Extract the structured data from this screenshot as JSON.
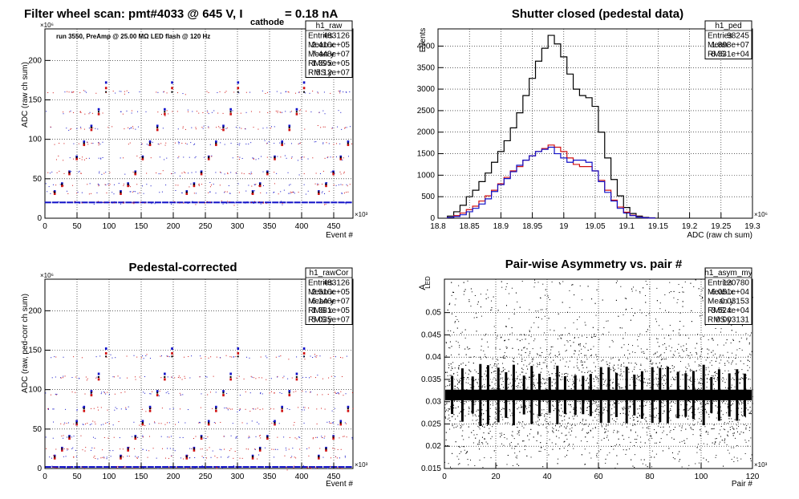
{
  "chart_data": [
    {
      "type": "scatter",
      "title": "Filter wheel scan: pmt#4033 @   645 V, I",
      "title_sub": "cathode",
      "title_tail": " = 0.18 nA",
      "annotation": "run 3550, PreAmp @ 25.00 MΩ LED flash @  120 Hz",
      "xlabel": "Event #",
      "ylabel": "ADC (raw ch sum)",
      "x_multiplier": "×10³",
      "y_multiplier": "×10⁶",
      "xlim": [
        0,
        480
      ],
      "ylim": [
        0,
        240
      ],
      "x_ticks": [
        "0",
        "50",
        "100",
        "150",
        "200",
        "250",
        "300",
        "350",
        "400",
        "450"
      ],
      "y_ticks": [
        "0",
        "50",
        "100",
        "150",
        "200"
      ],
      "grid": true,
      "stats_box": {
        "name": "h1_raw",
        "rows": [
          [
            "Entries",
            "483126"
          ],
          [
            "Mean x",
            "2.416e+05"
          ],
          [
            "Mean y",
            "7.448e+07"
          ],
          [
            "RMS x",
            "1.395e+05"
          ],
          [
            "RMS y",
            "5.12e+07"
          ]
        ]
      },
      "levels": [
        {
          "y": 20,
          "blue": 20,
          "red": 20
        },
        {
          "y": 33,
          "blue": 34,
          "red": 31
        },
        {
          "y": 43,
          "blue": 44,
          "red": 41
        },
        {
          "y": 58,
          "blue": 59,
          "red": 56
        },
        {
          "y": 77,
          "blue": 78,
          "red": 75
        },
        {
          "y": 95,
          "blue": 97,
          "red": 93
        },
        {
          "y": 115,
          "blue": 117,
          "red": 112
        },
        {
          "y": 135,
          "blue": 138,
          "red": 132
        },
        {
          "y": 160,
          "blue": 172,
          "red": 165
        }
      ]
    },
    {
      "type": "histogram",
      "title": "Shutter closed (pedestal data)",
      "xlabel": "ADC (raw ch sum)",
      "ylabel": "Events",
      "x_multiplier": "×10⁶",
      "xlim": [
        18.8,
        19.3
      ],
      "ylim": [
        0,
        4400
      ],
      "x_ticks": [
        "18.8",
        "18.85",
        "18.9",
        "18.95",
        "19",
        "19.05",
        "19.1",
        "19.15",
        "19.2",
        "19.25",
        "19.3"
      ],
      "y_ticks": [
        "0",
        "500",
        "1000",
        "1500",
        "2000",
        "2500",
        "3000",
        "3500",
        "4000"
      ],
      "grid": true,
      "stats_box": {
        "name": "h1_ped",
        "rows": [
          [
            "Entries",
            "98245"
          ],
          [
            "Mean",
            "1.898e+07"
          ],
          [
            "RMS",
            "6.331e+04"
          ]
        ]
      },
      "bin_width": 0.01,
      "series": [
        {
          "name": "total",
          "color": "#000000",
          "x": [
            18.82,
            18.83,
            18.84,
            18.85,
            18.86,
            18.87,
            18.88,
            18.89,
            18.9,
            18.91,
            18.92,
            18.93,
            18.94,
            18.95,
            18.96,
            18.97,
            18.98,
            18.99,
            19.0,
            19.01,
            19.02,
            19.03,
            19.04,
            19.05,
            19.06,
            19.07,
            19.08,
            19.09,
            19.1,
            19.11,
            19.12,
            19.13,
            19.14
          ],
          "values": [
            50,
            150,
            300,
            500,
            650,
            850,
            1050,
            1300,
            1550,
            1800,
            2100,
            2450,
            2850,
            3250,
            3650,
            3950,
            4250,
            4050,
            3750,
            3350,
            3000,
            2850,
            2800,
            2600,
            2000,
            1400,
            900,
            520,
            250,
            110,
            50,
            20,
            10
          ]
        },
        {
          "name": "red",
          "color": "#d01010",
          "x": [
            18.82,
            18.83,
            18.84,
            18.85,
            18.86,
            18.87,
            18.88,
            18.89,
            18.9,
            18.91,
            18.92,
            18.93,
            18.94,
            18.95,
            18.96,
            18.97,
            18.98,
            18.99,
            19.0,
            19.01,
            19.02,
            19.03,
            19.04,
            19.05,
            19.06,
            19.07,
            19.08,
            19.09,
            19.1,
            19.11,
            19.12,
            19.13,
            19.14
          ],
          "values": [
            20,
            60,
            120,
            200,
            280,
            400,
            520,
            650,
            800,
            950,
            1100,
            1200,
            1350,
            1450,
            1550,
            1620,
            1700,
            1650,
            1550,
            1400,
            1250,
            1200,
            1200,
            1100,
            880,
            650,
            420,
            260,
            140,
            70,
            30,
            10,
            5
          ]
        },
        {
          "name": "blue",
          "color": "#1010c8",
          "x": [
            18.82,
            18.83,
            18.84,
            18.85,
            18.86,
            18.87,
            18.88,
            18.89,
            18.9,
            18.91,
            18.92,
            18.93,
            18.94,
            18.95,
            18.96,
            18.97,
            18.98,
            18.99,
            19.0,
            19.01,
            19.02,
            19.03,
            19.04,
            19.05,
            19.06,
            19.07,
            19.08,
            19.09,
            19.1,
            19.11,
            19.12,
            19.13,
            19.14
          ],
          "values": [
            20,
            40,
            80,
            150,
            230,
            330,
            450,
            620,
            780,
            920,
            1080,
            1230,
            1350,
            1450,
            1550,
            1600,
            1650,
            1500,
            1400,
            1300,
            1350,
            1350,
            1300,
            1100,
            850,
            600,
            400,
            230,
            120,
            60,
            25,
            10,
            5
          ]
        }
      ]
    },
    {
      "type": "scatter",
      "title": "Pedestal-corrected",
      "xlabel": "Event #",
      "ylabel": "ADC (raw, ped-corr ch sum)",
      "x_multiplier": "×10³",
      "y_multiplier": "×10⁶",
      "xlim": [
        0,
        480
      ],
      "ylim": [
        0,
        240
      ],
      "x_ticks": [
        "0",
        "50",
        "100",
        "150",
        "200",
        "250",
        "300",
        "350",
        "400",
        "450"
      ],
      "y_ticks": [
        "0",
        "50",
        "100",
        "150",
        "200"
      ],
      "grid": true,
      "stats_box": {
        "name": "h1_rawCor",
        "rows": [
          [
            "Entries",
            "483126"
          ],
          [
            "Mean x",
            "2.516e+05"
          ],
          [
            "Mean y",
            "6.146e+07"
          ],
          [
            "RMS x",
            "1.381e+05"
          ],
          [
            "RMS y",
            "5.035e+07"
          ]
        ]
      },
      "levels": [
        {
          "y": 2,
          "blue": 2,
          "red": 2
        },
        {
          "y": 15,
          "blue": 16,
          "red": 13
        },
        {
          "y": 25,
          "blue": 26,
          "red": 23
        },
        {
          "y": 40,
          "blue": 41,
          "red": 38
        },
        {
          "y": 58,
          "blue": 60,
          "red": 56
        },
        {
          "y": 76,
          "blue": 78,
          "red": 73
        },
        {
          "y": 96,
          "blue": 98,
          "red": 93
        },
        {
          "y": 116,
          "blue": 120,
          "red": 113
        },
        {
          "y": 142,
          "blue": 152,
          "red": 146
        }
      ]
    },
    {
      "type": "scatter",
      "title": "Pair-wise Asymmetry vs. pair #",
      "xlabel": "Pair #",
      "ylabel": "A",
      "ylabel_sub": "LED",
      "x_multiplier": "×10³",
      "xlim": [
        0,
        120
      ],
      "ylim": [
        0.015,
        0.0575
      ],
      "x_ticks": [
        "0",
        "20",
        "40",
        "60",
        "80",
        "100",
        "120"
      ],
      "y_ticks": [
        "0.015",
        "0.02",
        "0.025",
        "0.03",
        "0.035",
        "0.04",
        "0.045",
        "0.05"
      ],
      "grid": true,
      "stats_box": {
        "name": "h1_asym_my",
        "rows": [
          [
            "Entries",
            "120780"
          ],
          [
            "Mean x",
            "6.051e+04"
          ],
          [
            "Mean y",
            "0.03153"
          ],
          [
            "RMS x",
            "3.524e+04"
          ],
          [
            "RMS y",
            "0.003131"
          ]
        ]
      },
      "band_center": 0.0315,
      "band_halfwidth": 0.0012,
      "spike_positions": [
        3,
        7,
        11,
        14,
        17,
        21,
        24,
        27,
        31,
        34,
        37,
        41,
        44,
        47,
        51,
        54,
        57,
        61,
        64,
        67,
        71,
        74,
        77,
        81,
        84,
        87,
        91,
        94,
        97,
        101,
        104,
        107,
        111,
        114,
        117
      ]
    }
  ]
}
